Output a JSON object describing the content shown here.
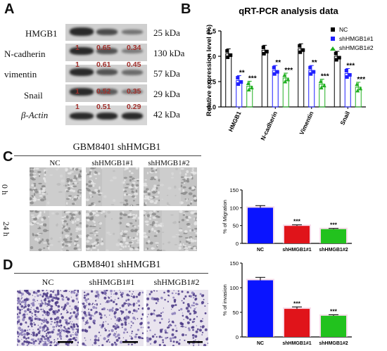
{
  "panels": {
    "a": "A",
    "b": "B",
    "c": "C",
    "d": "D"
  },
  "western_blot": {
    "rows": [
      {
        "label": "HMGB1",
        "kda": "25 kDa",
        "ratios": []
      },
      {
        "label": "N-cadherin",
        "kda": "130 kDa",
        "ratios": [
          "1",
          "0.65",
          "0.34"
        ]
      },
      {
        "label": "vimentin",
        "kda": "57 kDa",
        "ratios": [
          "1",
          "0.61",
          "0.45"
        ]
      },
      {
        "label": "Snail",
        "kda": "29 kDa",
        "ratios": [
          "1",
          "0.52",
          "0.35"
        ]
      },
      {
        "label": "β-Actin",
        "kda": "42 kDa",
        "ratios": [
          "1",
          "0.51",
          "0.29"
        ]
      }
    ]
  },
  "colors": {
    "nc": "#000000",
    "sh1": "#1f1fff",
    "sh2": "#22b022",
    "ratio_red": "#a0302c",
    "bar_red": "#e0141a",
    "bar_blue": "#0a14ff",
    "bar_green": "#22c21e"
  },
  "chart_data": [
    {
      "type": "scatter",
      "title": "qRT-PCR analysis data",
      "ylabel": "Relative expression level (%)",
      "xlabel": "",
      "categories": [
        "HMGB1",
        "N-cadherin",
        "Vimentin",
        "Snail"
      ],
      "ylim": [
        0,
        1.5
      ],
      "yticks": [
        "0.0",
        "0.5",
        "1.0",
        "1.5"
      ],
      "series": [
        {
          "name": "NC",
          "values": [
            1.05,
            1.12,
            1.15,
            1.0
          ]
        },
        {
          "name": "shHMGB1#1",
          "values": [
            0.52,
            0.72,
            0.72,
            0.66
          ]
        },
        {
          "name": "shHMGB1#2",
          "values": [
            0.41,
            0.57,
            0.45,
            0.39
          ]
        }
      ],
      "significance": [
        [
          "**",
          "***"
        ],
        [
          "**",
          "***"
        ],
        [
          "**",
          "***"
        ],
        [
          "***",
          "***"
        ]
      ],
      "legend": "top-right"
    },
    {
      "type": "bar",
      "ylabel": "% of Migration",
      "categories": [
        "NC",
        "shHMGB1#1",
        "shHMGB1#2"
      ],
      "values": [
        100,
        49,
        40
      ],
      "errors": [
        6,
        3,
        2
      ],
      "ylim": [
        0,
        150
      ],
      "yticks": [
        "0",
        "50",
        "100",
        "150"
      ],
      "significance": [
        "",
        "***",
        "***"
      ]
    },
    {
      "type": "bar",
      "ylabel": "% of invasion",
      "categories": [
        "NC",
        "shHMGB1#1",
        "shHMGB1#2"
      ],
      "values": [
        115,
        57,
        43
      ],
      "errors": [
        6,
        4,
        2
      ],
      "ylim": [
        0,
        150
      ],
      "yticks": [
        "0",
        "50",
        "100",
        "150"
      ],
      "significance": [
        "",
        "***",
        "***"
      ]
    }
  ],
  "migration": {
    "title": "GBM8401 shHMGB1",
    "columns": [
      "NC",
      "shHMGB1#1",
      "shHMGB1#2"
    ],
    "rows": [
      "0 h",
      "24 h"
    ]
  },
  "invasion": {
    "title": "GBM8401 shHMGB1",
    "columns": [
      "NC",
      "shHMGB1#1",
      "shHMGB1#2"
    ]
  }
}
